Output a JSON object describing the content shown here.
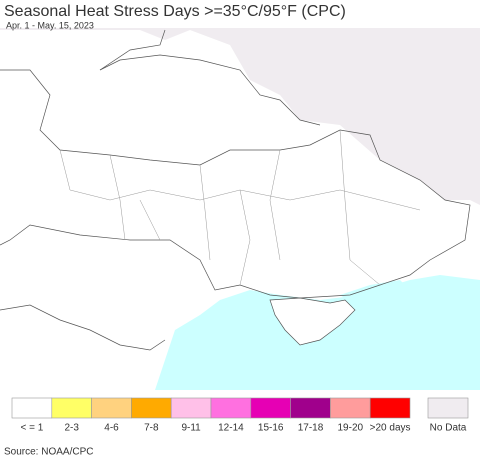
{
  "header": {
    "title": "Seasonal Heat Stress Days >=35°C/95°F (CPC)",
    "subtitle": "Apr. 1 - May. 15, 2023"
  },
  "legend": [
    {
      "label": "< = 1",
      "color": "#ffffff"
    },
    {
      "label": "2-3",
      "color": "#ffff66"
    },
    {
      "label": "4-6",
      "color": "#ffd27f"
    },
    {
      "label": "7-8",
      "color": "#ffaa00"
    },
    {
      "label": "9-11",
      "color": "#ffc0e8"
    },
    {
      "label": "12-14",
      "color": "#ff70e0"
    },
    {
      "label": "15-16",
      "color": "#e600b4"
    },
    {
      "label": "17-18",
      "color": "#a0008c"
    },
    {
      "label": "19-20",
      "color": "#ff9c9c"
    },
    {
      "label": ">20 days",
      "color": "#ff0000"
    }
  ],
  "no_data": {
    "label": "No Data",
    "color": "#f0ecf0"
  },
  "source": "Source: NOAA/CPC"
}
